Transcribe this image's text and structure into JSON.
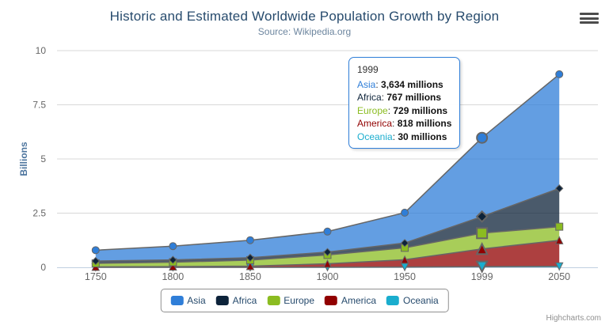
{
  "chart": {
    "title": "Historic and Estimated Worldwide Population Growth by Region",
    "subtitle": "Source: Wikipedia.org"
  },
  "y_axis": {
    "title": "Billions",
    "tick_labels": [
      "0",
      "2.5",
      "5",
      "7.5",
      "10"
    ]
  },
  "x_axis": {
    "categories": [
      "1750",
      "1800",
      "1850",
      "1900",
      "1950",
      "1999",
      "2050"
    ]
  },
  "tooltip": {
    "header": "1999",
    "rows": [
      {
        "name": "Asia",
        "value": "3,634 millions",
        "color": "#2f7ed8"
      },
      {
        "name": "Africa",
        "value": "767 millions",
        "color": "#0d233a"
      },
      {
        "name": "Europe",
        "value": "729 millions",
        "color": "#8bbc21"
      },
      {
        "name": "America",
        "value": "818 millions",
        "color": "#910000"
      },
      {
        "name": "Oceania",
        "value": "30 millions",
        "color": "#1aadce"
      }
    ]
  },
  "legend": {
    "items": [
      {
        "label": "Asia",
        "color": "#2f7ed8"
      },
      {
        "label": "Africa",
        "color": "#0d233a"
      },
      {
        "label": "Europe",
        "color": "#8bbc21"
      },
      {
        "label": "America",
        "color": "#910000"
      },
      {
        "label": "Oceania",
        "color": "#1aadce"
      }
    ]
  },
  "credits": "Highcharts.com",
  "icons": {
    "context_menu": "hamburger-icon"
  },
  "style_colors": {
    "title": "#274b6d",
    "subtitle": "#6d869f",
    "axis_title": "#4d759e",
    "axis_labels": "#666666",
    "axis_line": "#c0d0e0",
    "gridline": "#d8d8d8",
    "series_outline": "#666666",
    "tooltip_border": "#2f7ed8",
    "legend_border": "#909090",
    "credits": "#909090"
  },
  "chart_data": {
    "type": "area",
    "stacking": "normal",
    "title": "Historic and Estimated Worldwide Population Growth by Region",
    "subtitle": "Source: Wikipedia.org",
    "categories": [
      "1750",
      "1800",
      "1850",
      "1900",
      "1950",
      "1999",
      "2050"
    ],
    "unit": "millions",
    "ylabel": "Billions",
    "ylim": [
      0,
      10
    ],
    "y_ticks_billions": [
      0,
      2.5,
      5,
      7.5,
      10
    ],
    "grid": true,
    "legend_position": "bottom",
    "hover_category_index": 5,
    "stack_order": "first series (Asia) on top, last series (Oceania) at bottom",
    "fill_opacity": 0.75,
    "series": [
      {
        "name": "Asia",
        "color": "#2f7ed8",
        "marker": "circle",
        "values": [
          502,
          635,
          809,
          947,
          1402,
          3634,
          5268
        ]
      },
      {
        "name": "Africa",
        "color": "#0d233a",
        "marker": "diamond",
        "values": [
          106,
          107,
          111,
          133,
          221,
          767,
          1766
        ]
      },
      {
        "name": "Europe",
        "color": "#8bbc21",
        "marker": "square",
        "values": [
          163,
          203,
          276,
          408,
          547,
          729,
          628
        ]
      },
      {
        "name": "America",
        "color": "#910000",
        "marker": "triangle-up",
        "values": [
          18,
          31,
          54,
          156,
          339,
          818,
          1201
        ]
      },
      {
        "name": "Oceania",
        "color": "#1aadce",
        "marker": "triangle-down",
        "values": [
          2,
          2,
          2,
          6,
          13,
          30,
          46
        ]
      }
    ],
    "stack_totals": [
      791,
      978,
      1252,
      1650,
      2522,
      5978,
      8909
    ]
  }
}
